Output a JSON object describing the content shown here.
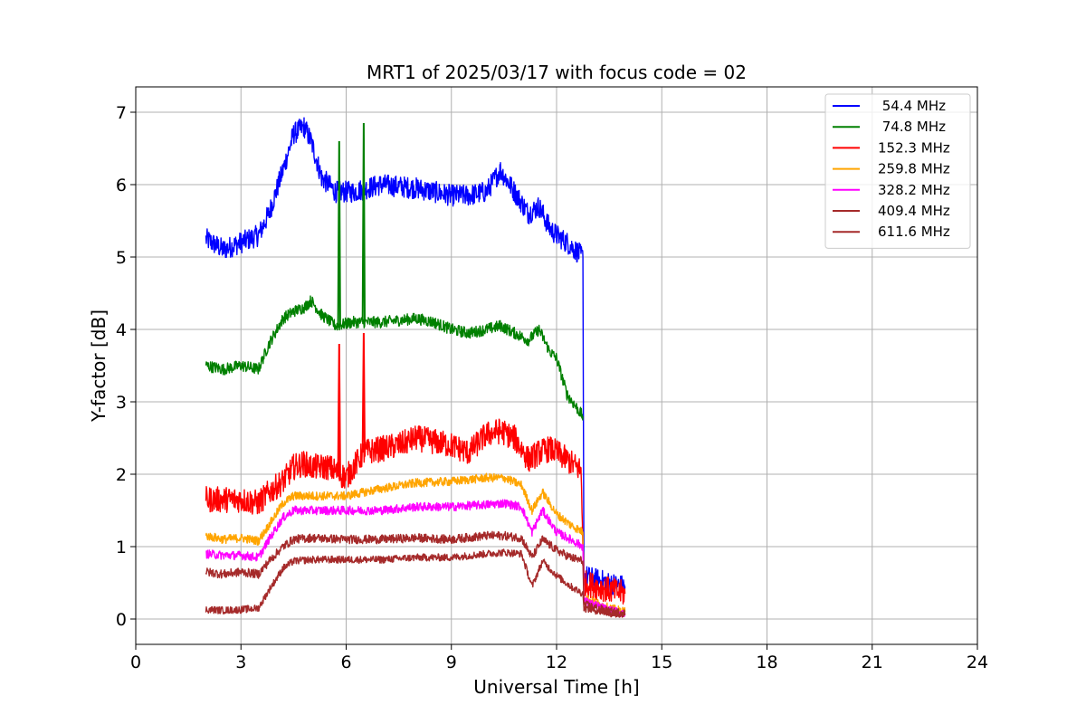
{
  "chart_data": {
    "type": "line",
    "title": "MRT1 of 2025/03/17 with focus code = 02",
    "xlabel": "Universal Time [h]",
    "ylabel": "Y-factor [dB]",
    "xlim": [
      0,
      24
    ],
    "ylim": [
      -0.35,
      7.35
    ],
    "xticks": [
      0,
      3,
      6,
      9,
      12,
      15,
      18,
      21,
      24
    ],
    "yticks": [
      0,
      1,
      2,
      3,
      4,
      5,
      6,
      7
    ],
    "grid": true,
    "legend_position": "top-right",
    "series": [
      {
        "name": " 54.4 MHz",
        "color": "#0000ff",
        "noise": 0.15,
        "x": [
          2.0,
          2.5,
          3.0,
          3.5,
          3.8,
          4.2,
          4.5,
          4.8,
          5.0,
          5.3,
          5.7,
          6.2,
          7.0,
          8.0,
          8.5,
          9.0,
          9.5,
          10.0,
          10.4,
          10.8,
          11.2,
          11.5,
          11.8,
          12.0,
          12.3,
          12.75,
          12.78,
          13.5,
          13.95
        ],
        "y": [
          5.25,
          5.1,
          5.2,
          5.3,
          5.6,
          6.2,
          6.7,
          6.8,
          6.6,
          6.1,
          5.9,
          5.9,
          6.0,
          5.95,
          5.9,
          5.85,
          5.85,
          5.9,
          6.2,
          5.9,
          5.6,
          5.7,
          5.4,
          5.3,
          5.2,
          5.0,
          0.6,
          0.5,
          0.45
        ]
      },
      {
        "name": " 74.8 MHz",
        "color": "#008000",
        "noise": 0.08,
        "x": [
          2.0,
          2.5,
          3.0,
          3.5,
          3.8,
          4.2,
          4.5,
          4.8,
          5.0,
          5.3,
          5.7,
          6.2,
          7.0,
          8.0,
          8.5,
          9.0,
          9.5,
          10.0,
          10.4,
          10.8,
          11.2,
          11.5,
          11.8,
          12.0,
          12.3,
          12.75
        ],
        "y": [
          3.5,
          3.45,
          3.5,
          3.45,
          3.8,
          4.15,
          4.25,
          4.3,
          4.4,
          4.2,
          4.05,
          4.1,
          4.1,
          4.15,
          4.1,
          4.0,
          3.95,
          4.0,
          4.05,
          3.95,
          3.85,
          4.0,
          3.7,
          3.6,
          3.1,
          2.8
        ],
        "spikes": [
          [
            5.8,
            6.6
          ],
          [
            6.5,
            6.85
          ]
        ]
      },
      {
        "name": "152.3 MHz",
        "color": "#ff0000",
        "noise": 0.18,
        "x": [
          2.0,
          2.5,
          3.0,
          3.5,
          3.8,
          4.2,
          4.5,
          4.8,
          5.0,
          5.5,
          6.0,
          6.5,
          7.0,
          7.5,
          8.0,
          8.5,
          9.0,
          9.5,
          10.0,
          10.4,
          10.8,
          11.2,
          11.5,
          11.8,
          12.0,
          12.3,
          12.7,
          12.78,
          13.5,
          13.95
        ],
        "y": [
          1.65,
          1.65,
          1.65,
          1.6,
          1.75,
          1.9,
          2.1,
          2.15,
          2.1,
          2.1,
          1.95,
          2.3,
          2.35,
          2.4,
          2.5,
          2.45,
          2.4,
          2.3,
          2.55,
          2.6,
          2.5,
          2.2,
          2.3,
          2.35,
          2.3,
          2.2,
          2.05,
          0.5,
          0.4,
          0.35
        ],
        "spikes": [
          [
            5.8,
            3.8
          ],
          [
            6.5,
            3.95
          ]
        ]
      },
      {
        "name": "259.8 MHz",
        "color": "#ffa500",
        "noise": 0.06,
        "x": [
          2.0,
          2.5,
          3.0,
          3.5,
          3.8,
          4.2,
          4.5,
          5.0,
          6.0,
          7.0,
          8.0,
          9.0,
          10.0,
          10.5,
          11.0,
          11.3,
          11.6,
          12.0,
          12.4,
          12.75,
          12.78,
          13.5,
          13.95
        ],
        "y": [
          1.15,
          1.1,
          1.12,
          1.08,
          1.3,
          1.6,
          1.7,
          1.7,
          1.7,
          1.8,
          1.88,
          1.9,
          1.95,
          1.95,
          1.85,
          1.5,
          1.75,
          1.45,
          1.3,
          1.2,
          0.3,
          0.15,
          0.1
        ]
      },
      {
        "name": "328.2 MHz",
        "color": "#ff00ff",
        "noise": 0.06,
        "x": [
          2.0,
          2.5,
          3.0,
          3.5,
          3.8,
          4.2,
          4.5,
          5.0,
          6.0,
          7.0,
          8.0,
          9.0,
          10.0,
          10.5,
          11.0,
          11.3,
          11.6,
          12.0,
          12.4,
          12.75,
          12.78,
          13.5,
          13.95
        ],
        "y": [
          0.9,
          0.88,
          0.88,
          0.85,
          1.1,
          1.4,
          1.5,
          1.5,
          1.5,
          1.5,
          1.55,
          1.55,
          1.58,
          1.6,
          1.55,
          1.2,
          1.5,
          1.2,
          1.1,
          1.0,
          0.25,
          0.12,
          0.08
        ]
      },
      {
        "name": "409.4 MHz",
        "color": "#a52a2a",
        "noise": 0.06,
        "x": [
          2.0,
          2.5,
          3.0,
          3.5,
          3.8,
          4.2,
          4.5,
          5.0,
          6.0,
          7.0,
          8.0,
          9.0,
          10.0,
          10.5,
          11.0,
          11.3,
          11.6,
          12.0,
          12.4,
          12.75,
          12.78,
          13.5,
          13.95
        ],
        "y": [
          0.65,
          0.62,
          0.65,
          0.62,
          0.8,
          1.0,
          1.1,
          1.12,
          1.1,
          1.1,
          1.12,
          1.1,
          1.15,
          1.15,
          1.12,
          0.85,
          1.1,
          0.95,
          0.85,
          0.8,
          0.2,
          0.1,
          0.08
        ]
      },
      {
        "name": "611.6 MHz",
        "color": "#a52a2a",
        "noise": 0.05,
        "x": [
          2.0,
          2.5,
          3.0,
          3.5,
          3.8,
          4.2,
          4.5,
          5.0,
          6.0,
          7.0,
          8.0,
          9.0,
          10.0,
          10.5,
          11.0,
          11.3,
          11.6,
          12.0,
          12.4,
          12.75,
          12.78,
          13.5,
          13.95
        ],
        "y": [
          0.13,
          0.12,
          0.13,
          0.15,
          0.4,
          0.7,
          0.8,
          0.82,
          0.82,
          0.82,
          0.85,
          0.85,
          0.9,
          0.92,
          0.9,
          0.45,
          0.8,
          0.6,
          0.45,
          0.35,
          0.15,
          0.08,
          0.05
        ]
      }
    ]
  }
}
